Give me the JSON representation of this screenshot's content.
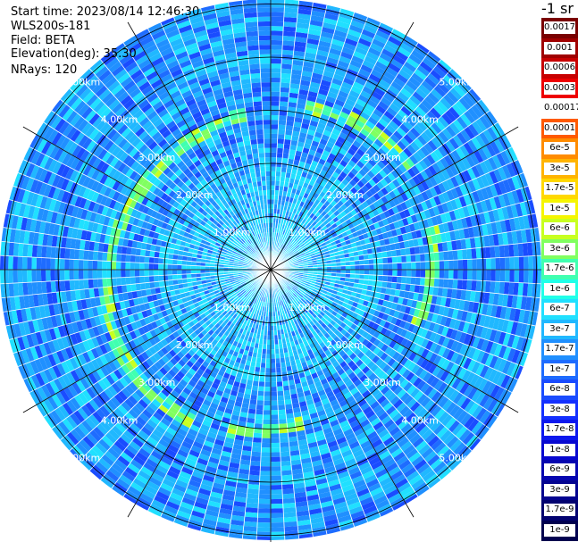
{
  "header": {
    "start_time": "Start time: 2023/08/14 12:46:30",
    "instrument": "WLS200s-181",
    "field": "Field: BETA",
    "elevation": "Elevation(deg): 35.30",
    "nrays": "NRays: 120"
  },
  "colorbar": {
    "units": "-1 sr",
    "labels": [
      "0.0017",
      "0.001",
      "0.0006",
      "0.0003",
      "0.00017",
      "0.0001",
      "6e-5",
      "3e-5",
      "1.7e-5",
      "1e-5",
      "6e-6",
      "3e-6",
      "1.7e-6",
      "1e-6",
      "6e-7",
      "3e-7",
      "1.7e-7",
      "1e-7",
      "6e-8",
      "3e-8",
      "1.7e-8",
      "1e-8",
      "6e-9",
      "3e-9",
      "1.7e-9",
      "1e-9"
    ],
    "colors": [
      "#7a0000",
      "#a00000",
      "#c80000",
      "#ee0000",
      "#ffffff",
      "#ff5a00",
      "#ff8c00",
      "#ffb400",
      "#ffd800",
      "#f5f500",
      "#c8ff20",
      "#80ff60",
      "#40ffb0",
      "#20ffe8",
      "#20e0ff",
      "#20b8ff",
      "#2090ff",
      "#1e6cff",
      "#1a4cff",
      "#1430ff",
      "#0c18ee",
      "#0808d0",
      "#0606b0",
      "#040490",
      "#020270",
      "#000050"
    ]
  },
  "range_rings": {
    "labels": [
      "1.00km",
      "2.00km",
      "3.00km",
      "4.00km",
      "5.00km"
    ],
    "km": [
      1,
      2,
      3,
      4,
      5
    ]
  },
  "scan": {
    "nrays": 120,
    "max_range_km": 5.3
  }
}
